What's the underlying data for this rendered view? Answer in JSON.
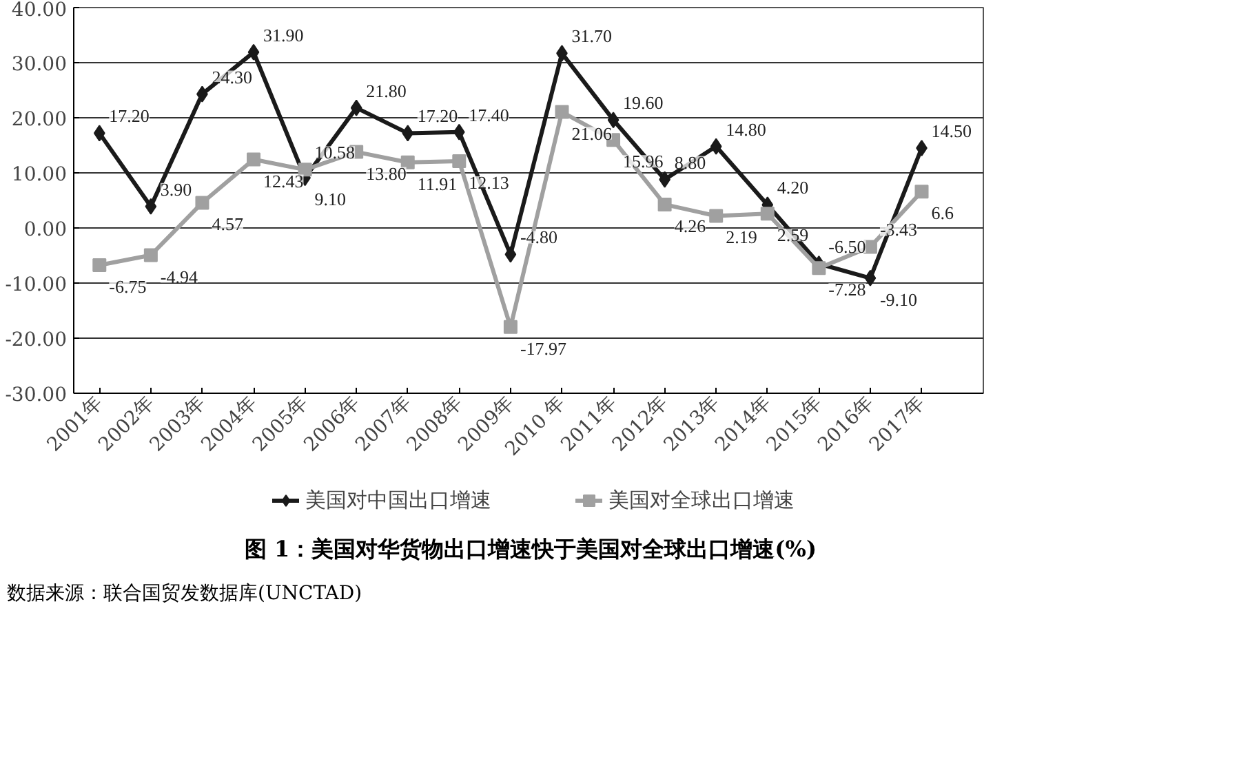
{
  "chart_data": {
    "type": "line",
    "title": "图 1：美国对华货物出口增速快于美国对全球出口增速(%)",
    "annotations": [
      "数据来源：联合国贸发数据库(UNCTAD)"
    ],
    "categories": [
      "2001年",
      "2002年",
      "2003年",
      "2004年",
      "2005年",
      "2006年",
      "2007年",
      "2008年",
      "2009年",
      "2010 年",
      "2011年",
      "2012年",
      "2013年",
      "2014年",
      "2015年",
      "2016年",
      "2017年"
    ],
    "series": [
      {
        "name": "美国对中国出口增速",
        "color": "#1a1a1a",
        "marker": "diamond",
        "values": [
          17.2,
          3.9,
          24.3,
          31.9,
          9.1,
          21.8,
          17.2,
          17.4,
          -4.8,
          31.7,
          19.6,
          8.8,
          14.8,
          4.2,
          -6.5,
          -9.1,
          14.5
        ],
        "value_labels": [
          "17.20",
          "3.90",
          "24.30",
          "31.90",
          "9.10",
          "21.80",
          "17.20",
          "17.40",
          "-4.80",
          "31.70",
          "19.60",
          "8.80",
          "14.80",
          "4.20",
          "-6.50",
          "-9.10",
          "14.50"
        ]
      },
      {
        "name": "美国对全球出口增速",
        "color": "#a0a0a0",
        "marker": "square",
        "values": [
          -6.75,
          -4.94,
          4.57,
          12.43,
          10.58,
          13.8,
          11.91,
          12.13,
          -17.97,
          21.06,
          15.96,
          4.26,
          2.19,
          2.59,
          -7.28,
          -3.43,
          6.6
        ],
        "value_labels": [
          "-6.75",
          "-4.94",
          "4.57",
          "12.43",
          "10.58",
          "13.80",
          "11.91",
          "12.13",
          "-17.97",
          "21.06",
          "15.96",
          "4.26",
          "2.19",
          "2.59",
          "-7.28",
          "-3.43",
          "6.6"
        ]
      }
    ],
    "ylim": [
      -30,
      40
    ],
    "yticks": [
      {
        "value": -30,
        "label": "-30.00"
      },
      {
        "value": -20,
        "label": "-20.00"
      },
      {
        "value": -10,
        "label": "-10.00"
      },
      {
        "value": 0,
        "label": "0.00"
      },
      {
        "value": 10,
        "label": "10.00"
      },
      {
        "value": 20,
        "label": "20.00"
      },
      {
        "value": 30,
        "label": "30.00"
      },
      {
        "value": 40,
        "label": "40.00"
      }
    ],
    "grid": "y",
    "legend": "bottom",
    "line_style": "solid"
  }
}
